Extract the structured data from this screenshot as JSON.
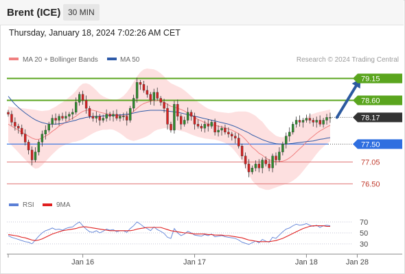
{
  "header": {
    "instrument": "Brent (ICE)",
    "timeframe": "30 MIN"
  },
  "timestamp": "Thursday, January 18, 2024 7:02:26 AM CET",
  "legend": {
    "items": [
      {
        "label": "MA 20 + Bollinger Bands",
        "color": "#f08080"
      },
      {
        "label": "MA 50",
        "color": "#2e5aa8"
      }
    ],
    "copyright": "Research © 2024 Trading Central"
  },
  "rsi_legend": {
    "items": [
      {
        "label": "RSI",
        "color": "#5b7fd6"
      },
      {
        "label": "9MA",
        "color": "#e02020"
      }
    ]
  },
  "colors": {
    "up": "#2e8b2e",
    "down": "#d62020",
    "band_fill": "#fde0e0",
    "ma20": "#f08080",
    "ma50": "#2e5aa8",
    "resistance": "#5aa51e",
    "pivot": "#2f6fe0",
    "support": "#e07070",
    "arrow": "#2c5aa0",
    "last_price": "#333333"
  },
  "chart_data": [
    {
      "type": "candlestick",
      "ylim": [
        76.3,
        79.4
      ],
      "x_range": [
        0,
        110
      ],
      "xticks": [
        {
          "label": "Jan 16",
          "x": 22
        },
        {
          "label": "Jan 17",
          "x": 55
        },
        {
          "label": "Jan 18",
          "x": 88
        },
        {
          "label": "Jan 28",
          "x": 103
        }
      ],
      "levels": [
        {
          "label": "79.15",
          "value": 79.15,
          "kind": "resistance"
        },
        {
          "label": "78.60",
          "value": 78.6,
          "kind": "resistance"
        },
        {
          "label": "78.17",
          "value": 78.17,
          "kind": "last_price"
        },
        {
          "label": "77.50",
          "value": 77.5,
          "kind": "pivot"
        },
        {
          "label": "77.05",
          "value": 77.05,
          "kind": "support"
        },
        {
          "label": "76.50",
          "value": 76.5,
          "kind": "support"
        }
      ],
      "arrow": {
        "from": [
          97,
          78.17
        ],
        "to": [
          104,
          79.15
        ]
      },
      "closes": [
        78.25,
        78.05,
        77.95,
        77.9,
        77.75,
        77.55,
        77.35,
        77.1,
        77.3,
        77.55,
        77.75,
        77.85,
        78.0,
        78.15,
        78.1,
        78.2,
        78.15,
        78.2,
        78.25,
        78.3,
        78.55,
        78.75,
        78.6,
        78.4,
        78.2,
        78.15,
        78.2,
        78.1,
        78.15,
        78.25,
        78.2,
        78.25,
        78.15,
        78.2,
        78.2,
        78.1,
        78.4,
        78.65,
        79.05,
        79.0,
        78.85,
        78.75,
        78.6,
        78.8,
        78.65,
        78.55,
        78.4,
        78.0,
        77.85,
        78.5,
        78.2,
        78.0,
        78.1,
        78.3,
        78.2,
        78.0,
        77.95,
        77.9,
        78.0,
        77.95,
        78.05,
        77.8,
        77.85,
        77.9,
        77.8,
        77.75,
        77.7,
        77.65,
        77.45,
        77.2,
        77.0,
        76.8,
        76.9,
        77.0,
        76.9,
        77.1,
        77.0,
        76.9,
        77.2,
        77.1,
        77.3,
        77.5,
        77.7,
        77.8,
        78.0,
        78.1,
        78.05,
        78.1,
        78.15,
        78.1,
        78.05,
        78.1,
        78.0,
        78.1,
        78.17,
        78.17
      ],
      "ma20": [
        78.0,
        77.95,
        77.9,
        77.85,
        77.8,
        77.75,
        77.7,
        77.65,
        77.62,
        77.62,
        77.65,
        77.7,
        77.75,
        77.82,
        77.88,
        77.95,
        78.0,
        78.05,
        78.1,
        78.15,
        78.2,
        78.27,
        78.32,
        78.35,
        78.36,
        78.35,
        78.33,
        78.3,
        78.28,
        78.26,
        78.25,
        78.24,
        78.22,
        78.21,
        78.21,
        78.22,
        78.26,
        78.32,
        78.4,
        78.47,
        78.52,
        78.55,
        78.57,
        78.6,
        78.6,
        78.58,
        78.55,
        78.5,
        78.45,
        78.43,
        78.4,
        78.37,
        78.33,
        78.28,
        78.22,
        78.17,
        78.12,
        78.08,
        78.04,
        78.01,
        77.99,
        77.97,
        77.95,
        77.93,
        77.91,
        77.88,
        77.85,
        77.81,
        77.76,
        77.7,
        77.62,
        77.52,
        77.42,
        77.35,
        77.27,
        77.22,
        77.15,
        77.1,
        77.08,
        77.06,
        77.06,
        77.07,
        77.1,
        77.15,
        77.22,
        77.3,
        77.38,
        77.46,
        77.55,
        77.63,
        77.7,
        77.77,
        77.83,
        77.88,
        77.93,
        77.97
      ],
      "ma50": [
        78.7,
        78.6,
        78.5,
        78.42,
        78.35,
        78.28,
        78.22,
        78.16,
        78.11,
        78.07,
        78.04,
        78.02,
        78.0,
        78.0,
        78.0,
        78.01,
        78.02,
        78.04,
        78.06,
        78.08,
        78.1,
        78.13,
        78.15,
        78.17,
        78.18,
        78.19,
        78.2,
        78.2,
        78.21,
        78.21,
        78.22,
        78.22,
        78.23,
        78.23,
        78.24,
        78.25,
        78.26,
        78.28,
        78.3,
        78.32,
        78.33,
        78.34,
        78.35,
        78.35,
        78.35,
        78.35,
        78.34,
        78.33,
        78.32,
        78.31,
        78.3,
        78.28,
        78.26,
        78.24,
        78.22,
        78.2,
        78.18,
        78.16,
        78.14,
        78.12,
        78.1,
        78.08,
        78.06,
        78.04,
        78.02,
        78.0,
        77.97,
        77.94,
        77.9,
        77.86,
        77.82,
        77.78,
        77.73,
        77.69,
        77.65,
        77.61,
        77.58,
        77.55,
        77.53,
        77.51,
        77.5,
        77.5,
        77.5,
        77.51,
        77.52,
        77.53,
        77.54,
        77.55,
        77.56,
        77.57,
        77.58,
        77.6,
        77.62,
        77.63,
        77.65,
        77.66
      ],
      "band_width": [
        0.45,
        0.48,
        0.52,
        0.56,
        0.6,
        0.64,
        0.68,
        0.72,
        0.74,
        0.72,
        0.68,
        0.64,
        0.6,
        0.58,
        0.56,
        0.55,
        0.55,
        0.56,
        0.58,
        0.6,
        0.64,
        0.68,
        0.7,
        0.68,
        0.64,
        0.58,
        0.52,
        0.46,
        0.42,
        0.4,
        0.38,
        0.38,
        0.4,
        0.44,
        0.5,
        0.58,
        0.66,
        0.74,
        0.8,
        0.84,
        0.86,
        0.85,
        0.82,
        0.78,
        0.74,
        0.7,
        0.65,
        0.6,
        0.58,
        0.56,
        0.55,
        0.54,
        0.52,
        0.5,
        0.48,
        0.46,
        0.44,
        0.42,
        0.4,
        0.38,
        0.37,
        0.36,
        0.36,
        0.37,
        0.38,
        0.4,
        0.44,
        0.5,
        0.56,
        0.62,
        0.7,
        0.78,
        0.84,
        0.86,
        0.86,
        0.84,
        0.8,
        0.75,
        0.7,
        0.65,
        0.62,
        0.6,
        0.6,
        0.62,
        0.64,
        0.66,
        0.66,
        0.64,
        0.62,
        0.6,
        0.56,
        0.52,
        0.48,
        0.45,
        0.42,
        0.4
      ]
    },
    {
      "type": "line",
      "title": "RSI",
      "ylim": [
        20,
        80
      ],
      "yticks": [
        70,
        50,
        30
      ],
      "x_range": [
        0,
        110
      ],
      "series": [
        {
          "name": "RSI",
          "values": [
            45,
            42,
            40,
            38,
            36,
            34,
            33,
            30,
            37,
            44,
            50,
            54,
            56,
            59,
            56,
            57,
            55,
            58,
            60,
            61,
            66,
            70,
            63,
            57,
            52,
            51,
            54,
            50,
            53,
            57,
            55,
            56,
            52,
            54,
            54,
            51,
            58,
            63,
            70,
            66,
            61,
            58,
            54,
            61,
            56,
            53,
            49,
            42,
            40,
            58,
            50,
            45,
            48,
            53,
            50,
            46,
            45,
            44,
            47,
            45,
            48,
            43,
            44,
            45,
            43,
            42,
            41,
            40,
            37,
            33,
            31,
            29,
            32,
            35,
            32,
            38,
            35,
            33,
            42,
            40,
            46,
            52,
            57,
            59,
            63,
            66,
            64,
            65,
            67,
            64,
            62,
            64,
            60,
            63,
            64,
            63
          ]
        },
        {
          "name": "9MA",
          "values": [
            47,
            46,
            45,
            44,
            42,
            41,
            39,
            37,
            36,
            37,
            39,
            42,
            45,
            48,
            50,
            52,
            54,
            55,
            56,
            57,
            58,
            60,
            61,
            61,
            60,
            59,
            58,
            57,
            56,
            55,
            54,
            54,
            54,
            54,
            54,
            54,
            54,
            55,
            57,
            58,
            59,
            60,
            60,
            60,
            60,
            60,
            58,
            56,
            54,
            53,
            52,
            51,
            50,
            50,
            49,
            48,
            48,
            48,
            48,
            47,
            47,
            46,
            46,
            46,
            45,
            45,
            44,
            43,
            42,
            41,
            39,
            37,
            36,
            35,
            34,
            34,
            34,
            34,
            35,
            36,
            38,
            40,
            43,
            46,
            49,
            52,
            55,
            58,
            60,
            62,
            63,
            63,
            63,
            63,
            62,
            62
          ]
        }
      ]
    }
  ]
}
